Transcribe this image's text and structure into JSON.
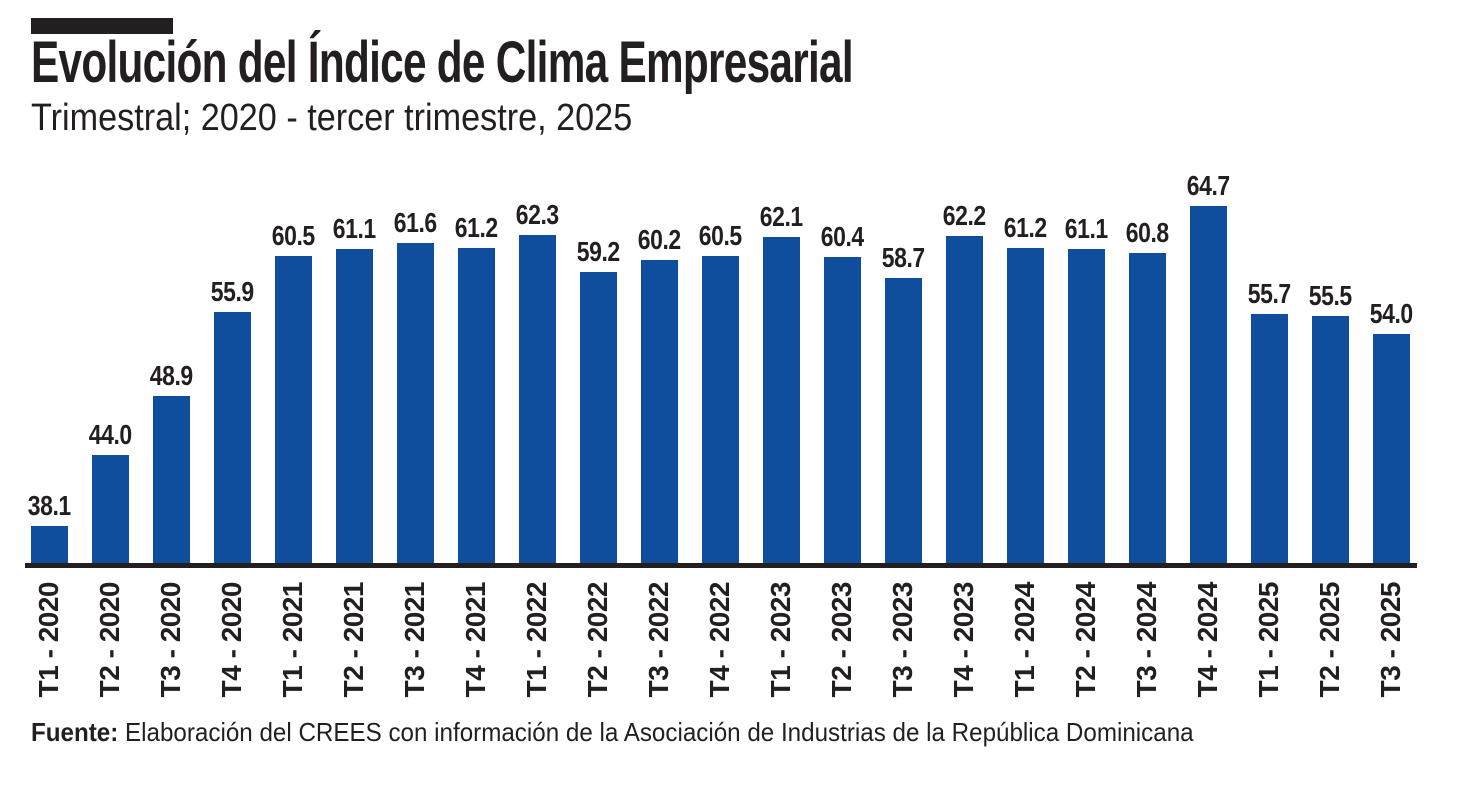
{
  "header": {
    "title": "Evolución del Índice de Clima Empresarial",
    "subtitle": "Trimestral; 2020 - tercer trimestre, 2025"
  },
  "source": {
    "label": "Fuente:",
    "text": " Elaboración del CREES con información de la Asociación de Industrias de la República Dominicana"
  },
  "colors": {
    "bar": "#0F4E9D",
    "text": "#231F20",
    "accent": "#231F20",
    "background": "#FFFFFF"
  },
  "chart_data": {
    "type": "bar",
    "title": "Evolución del Índice de Clima Empresarial",
    "subtitle": "Trimestral; 2020 - tercer trimestre, 2025",
    "categories": [
      "T1 - 2020",
      "T2 - 2020",
      "T3 - 2020",
      "T4 - 2020",
      "T1 - 2021",
      "T2 - 2021",
      "T3 - 2021",
      "T4 - 2021",
      "T1 - 2022",
      "T2 - 2022",
      "T3 - 2022",
      "T4 - 2022",
      "T1 - 2023",
      "T2 - 2023",
      "T3 - 2023",
      "T4 - 2023",
      "T1 - 2024",
      "T2 - 2024",
      "T3 - 2024",
      "T4 - 2024",
      "T1 - 2025",
      "T2 - 2025",
      "T3 - 2025"
    ],
    "values": [
      38.1,
      44.0,
      48.9,
      55.9,
      60.5,
      61.1,
      61.6,
      61.2,
      62.3,
      59.2,
      60.2,
      60.5,
      62.1,
      60.4,
      58.7,
      62.2,
      61.2,
      61.1,
      60.8,
      64.7,
      55.7,
      55.5,
      54.0
    ],
    "value_labels": [
      "38.1",
      "44.0",
      "48.9",
      "55.9",
      "60.5",
      "61.1",
      "61.6",
      "61.2",
      "62.3",
      "59.2",
      "60.2",
      "60.5",
      "62.1",
      "60.4",
      "58.7",
      "62.2",
      "61.2",
      "61.1",
      "60.8",
      "64.7",
      "55.7",
      "55.5",
      "54.0"
    ],
    "xlabel": "",
    "ylabel": "",
    "ylim": [
      35,
      66
    ],
    "grid": false,
    "legend": null,
    "bar_color": "#0F4E9D",
    "value_labels_shown": true,
    "x_tick_rotation": 90
  }
}
